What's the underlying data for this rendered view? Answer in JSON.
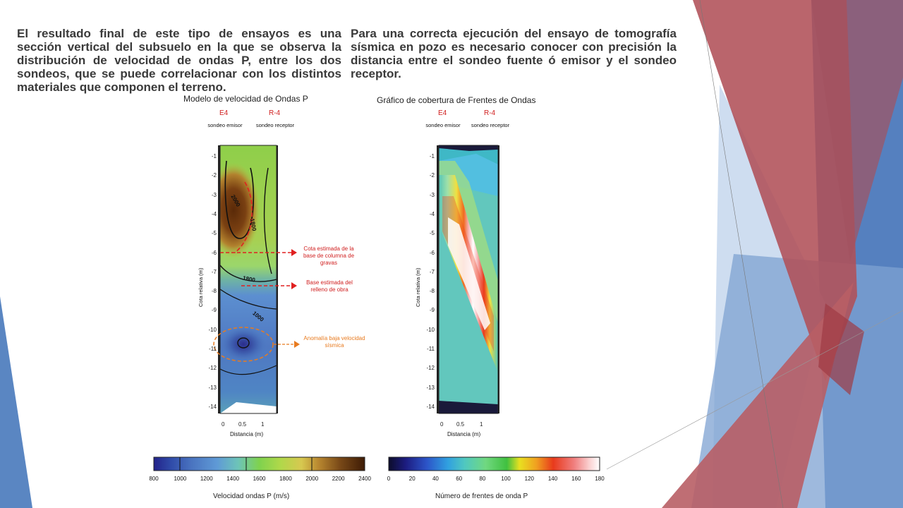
{
  "paragraphs": {
    "left": "El resultado final de este tipo de ensayos es una sección vertical del subsuelo en la que se observa la distribución de velocidad de ondas P, entre los dos sondeos, que se puede correlacionar con los distintos materiales que componen el terreno.",
    "right": "Para una correcta ejecución del ensayo de tomografía sísmica en pozo es necesario conocer con precisión la distancia entre el sondeo fuente ó emisor y el sondeo receptor."
  },
  "plot_left": {
    "title": "Modelo de velocidad de Ondas P",
    "source_label": "E4",
    "receiver_label": "R-4",
    "source_sub": "sondeo emisor",
    "receiver_sub": "sondeo receptor",
    "y_label": "Cota relativa (m)",
    "x_label": "Distancia (m)",
    "contour_labels": [
      "2000",
      "1800",
      "1800",
      "1000"
    ],
    "annotations": {
      "gravel_base": "Cota estimada de la base de columna de gravas",
      "fill_base": "Base estimada del relleno de obra",
      "anomaly": "Anomalía baja velocidad sísmica"
    }
  },
  "plot_right": {
    "title": "Gráfico de cobertura de Frentes de Ondas",
    "source_label": "E4",
    "receiver_label": "R-4",
    "source_sub": "sondeo emisor",
    "receiver_sub": "sondeo receptor",
    "y_label": "Cota relativa (m)",
    "x_label": "Distancia (m)"
  },
  "axis": {
    "y_ticks": [
      "-1",
      "-2",
      "-3",
      "-4",
      "-5",
      "-6",
      "-7",
      "-8",
      "-9",
      "-10",
      "-11",
      "-12",
      "-13",
      "-14"
    ],
    "x_ticks": [
      "0",
      "0.5",
      "1"
    ]
  },
  "colorbar_left": {
    "title": "Velocidad ondas P (m/s)",
    "ticks": [
      "800",
      "1000",
      "1200",
      "1400",
      "1600",
      "1800",
      "2000",
      "2200",
      "2400"
    ]
  },
  "colorbar_right": {
    "title": "Número de frentes de onda P",
    "ticks": [
      "0",
      "20",
      "40",
      "60",
      "80",
      "100",
      "120",
      "140",
      "160",
      "180"
    ]
  },
  "colors": {
    "background_red": "#b5545a",
    "background_blue": "#4f7fbf",
    "label_red": "#d02020",
    "annotation_orange": "#e87b20"
  }
}
